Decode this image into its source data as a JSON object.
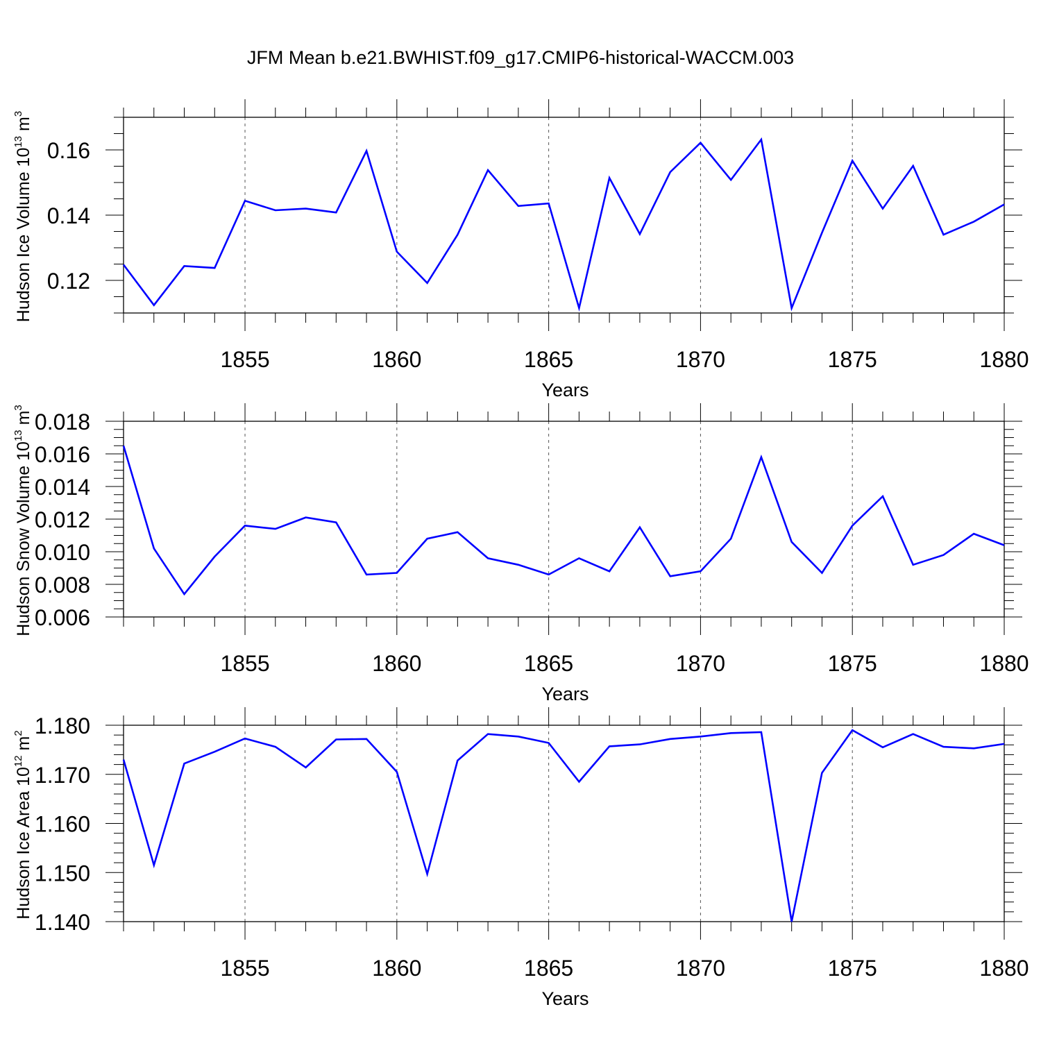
{
  "figure": {
    "title": "JFM Mean b.e21.BWHIST.f09_g17.CMIP6-historical-WACCM.003"
  },
  "chart_data": [
    {
      "type": "line",
      "title": "",
      "xlabel": "Years",
      "ylabel": "Hudson Ice Volume 10",
      "ylabel_exp": "13",
      "ylabel_unit": " m",
      "ylabel_unit_exp": "3",
      "xlim": [
        1851,
        1880
      ],
      "ylim": [
        0.11,
        0.17
      ],
      "x_ticks": [
        1855,
        1860,
        1865,
        1870,
        1875,
        1880
      ],
      "x_tick_labels": [
        "1855",
        "1860",
        "1865",
        "1870",
        "1875",
        "1880"
      ],
      "y_ticks": [
        0.12,
        0.14,
        0.16
      ],
      "y_tick_labels": [
        "0.12",
        "0.14",
        "0.16"
      ],
      "y_minor_step": 0.005,
      "vertical_grid": "dashed at major x ticks",
      "line_color": "#0000ff",
      "series": [
        {
          "x": [
            1851,
            1852,
            1853,
            1854,
            1855,
            1856,
            1857,
            1858,
            1859,
            1860,
            1861,
            1862,
            1863,
            1864,
            1865,
            1866,
            1867,
            1868,
            1869,
            1870,
            1871,
            1872,
            1873,
            1874,
            1875,
            1876,
            1877,
            1878,
            1879,
            1880
          ],
          "values": [
            0.1248,
            0.1124,
            0.1244,
            0.1238,
            0.1444,
            0.1415,
            0.142,
            0.1408,
            0.1597,
            0.1288,
            0.1192,
            0.134,
            0.1538,
            0.1428,
            0.1436,
            0.1115,
            0.1514,
            0.1342,
            0.1532,
            0.1622,
            0.1508,
            0.1632,
            0.1115,
            0.1346,
            0.1567,
            0.142,
            0.1551,
            0.134,
            0.138,
            0.1433
          ]
        }
      ]
    },
    {
      "type": "line",
      "title": "",
      "xlabel": "Years",
      "ylabel": "Hudson Snow Volume 10",
      "ylabel_exp": "13",
      "ylabel_unit": " m",
      "ylabel_unit_exp": "3",
      "xlim": [
        1851,
        1880
      ],
      "ylim": [
        0.006,
        0.018
      ],
      "x_ticks": [
        1855,
        1860,
        1865,
        1870,
        1875,
        1880
      ],
      "x_tick_labels": [
        "1855",
        "1860",
        "1865",
        "1870",
        "1875",
        "1880"
      ],
      "y_ticks": [
        0.006,
        0.008,
        0.01,
        0.012,
        0.014,
        0.016,
        0.018
      ],
      "y_tick_labels": [
        "0.006",
        "0.008",
        "0.010",
        "0.012",
        "0.014",
        "0.016",
        "0.018"
      ],
      "y_minor_step": 0.0005,
      "vertical_grid": "dashed at major x ticks",
      "line_color": "#0000ff",
      "series": [
        {
          "x": [
            1851,
            1852,
            1853,
            1854,
            1855,
            1856,
            1857,
            1858,
            1859,
            1860,
            1861,
            1862,
            1863,
            1864,
            1865,
            1866,
            1867,
            1868,
            1869,
            1870,
            1871,
            1872,
            1873,
            1874,
            1875,
            1876,
            1877,
            1878,
            1879,
            1880
          ],
          "values": [
            0.0165,
            0.0102,
            0.0074,
            0.0097,
            0.0116,
            0.0114,
            0.0121,
            0.0118,
            0.0086,
            0.0087,
            0.0108,
            0.0112,
            0.0096,
            0.0092,
            0.0086,
            0.0096,
            0.0088,
            0.0115,
            0.0085,
            0.0088,
            0.0108,
            0.0158,
            0.0106,
            0.0087,
            0.0116,
            0.0134,
            0.0092,
            0.0098,
            0.0111,
            0.0104
          ]
        }
      ]
    },
    {
      "type": "line",
      "title": "",
      "xlabel": "Years",
      "ylabel": "Hudson Ice Area 10",
      "ylabel_exp": "12",
      "ylabel_unit": " m",
      "ylabel_unit_exp": "2",
      "xlim": [
        1851,
        1880
      ],
      "ylim": [
        1.14,
        1.18
      ],
      "x_ticks": [
        1855,
        1860,
        1865,
        1870,
        1875,
        1880
      ],
      "x_tick_labels": [
        "1855",
        "1860",
        "1865",
        "1870",
        "1875",
        "1880"
      ],
      "y_ticks": [
        1.14,
        1.15,
        1.16,
        1.17,
        1.18
      ],
      "y_tick_labels": [
        "1.140",
        "1.150",
        "1.160",
        "1.170",
        "1.180"
      ],
      "y_minor_step": 0.002,
      "vertical_grid": "dashed at major x ticks",
      "line_color": "#0000ff",
      "series": [
        {
          "x": [
            1851,
            1852,
            1853,
            1854,
            1855,
            1856,
            1857,
            1858,
            1859,
            1860,
            1861,
            1862,
            1863,
            1864,
            1865,
            1866,
            1867,
            1868,
            1869,
            1870,
            1871,
            1872,
            1873,
            1874,
            1875,
            1876,
            1877,
            1878,
            1879,
            1880
          ],
          "values": [
            1.173,
            1.1515,
            1.1722,
            1.1746,
            1.1773,
            1.1756,
            1.1714,
            1.1771,
            1.1772,
            1.1705,
            1.1497,
            1.1728,
            1.1782,
            1.1777,
            1.1764,
            1.1685,
            1.1757,
            1.1761,
            1.1772,
            1.1777,
            1.1784,
            1.1786,
            1.14,
            1.1703,
            1.179,
            1.1755,
            1.1782,
            1.1756,
            1.1753,
            1.1762
          ]
        }
      ]
    }
  ]
}
